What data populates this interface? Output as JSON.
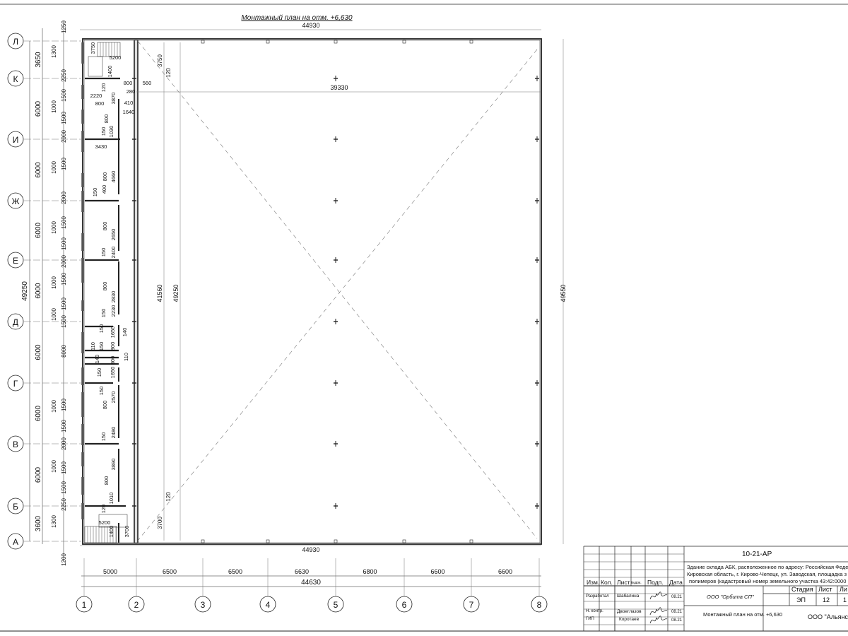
{
  "drawing": {
    "title": "Монтажный план на отм. +6,630",
    "overall_top": "44930",
    "overall_bottom": "44930",
    "inner_span": "39330",
    "right_height": "49550",
    "inner_heights": [
      "41560",
      "49250"
    ],
    "corner_dims": [
      "3750",
      "120",
      "120",
      "3700"
    ],
    "column_axes": [
      "1",
      "2",
      "3",
      "4",
      "5",
      "6",
      "7",
      "8"
    ],
    "column_spacings": [
      "5000",
      "6500",
      "6500",
      "6630",
      "6800",
      "6600",
      "6600"
    ],
    "column_total": "44630",
    "row_axes": [
      "Л",
      "К",
      "И",
      "Ж",
      "Е",
      "Д",
      "Г",
      "В",
      "Б",
      "А"
    ],
    "row_spacings": [
      "3650",
      "6000",
      "6000",
      "6000",
      "6000",
      "6000",
      "6000",
      "6000",
      "3600"
    ],
    "row_total": "49250",
    "row_minor": [
      "1250",
      "1300",
      "2250",
      "1500",
      "1000",
      "1500",
      "2000",
      "1000",
      "1500",
      "2000",
      "1000",
      "1500",
      "1500",
      "1000",
      "1500",
      "2000",
      "1000",
      "1500",
      "1500",
      "8000",
      "1500",
      "1000",
      "1500",
      "2000",
      "1500",
      "1000",
      "1500",
      "2250",
      "1300",
      "1200"
    ],
    "interior_dims": [
      "3750",
      "5200",
      "1400",
      "120",
      "800",
      "560",
      "280",
      "2220",
      "800",
      "3870",
      "410",
      "1640",
      "800",
      "150",
      "1030",
      "3430",
      "4660",
      "800",
      "150",
      "400",
      "800",
      "2650",
      "150",
      "2400",
      "800",
      "2830",
      "150",
      "2230",
      "150",
      "1650",
      "140",
      "110",
      "150",
      "800",
      "110",
      "140",
      "800",
      "150",
      "1650",
      "150",
      "2570",
      "800",
      "150",
      "2480",
      "3890",
      "800",
      "1010",
      "120",
      "5200",
      "1400",
      "3700"
    ]
  },
  "title_block": {
    "code": "10-21-АР",
    "description": [
      "Здание склада АБК, расположенное по адресу: Российская Феде",
      "Кировская область, г. Кирово-Чепецк, ул. Заводская, площадка з",
      "полимеров (кадастровый номер земельного участка 43:42:0000"
    ],
    "headers": [
      "Изм.",
      "Кол.",
      "Лист",
      "№док.",
      "Подп.",
      "Дата"
    ],
    "rows": [
      {
        "role": "Разработал",
        "name": "Шабалина",
        "date": "08.21"
      },
      {
        "role": "Н. контр.",
        "name": "Двоеглазов",
        "date": "08.21"
      },
      {
        "role": "ГИП",
        "name": "Коротаев",
        "date": "08.21"
      }
    ],
    "organization": "ООО \"Орбита СП\"",
    "stage_label": "Стадия",
    "sheet_label": "Лист",
    "sheets_label": "Ли",
    "stage": "ЭП",
    "sheet": "12",
    "sheets": "1",
    "sheet_title": "Монтажный план на отм. +6,630",
    "company": "ООО \"Альянс"
  }
}
